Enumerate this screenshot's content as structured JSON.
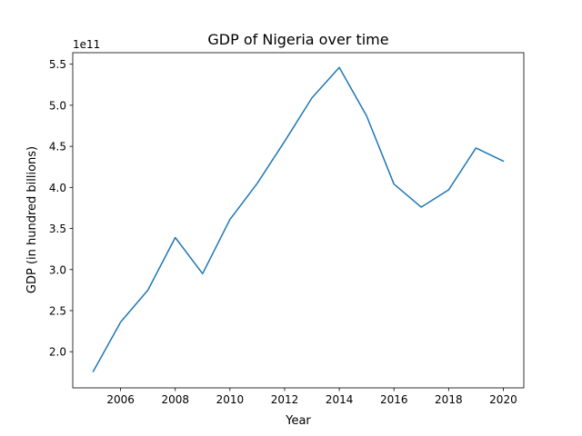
{
  "chart_data": {
    "type": "line",
    "title": "GDP of Nigeria over time",
    "xlabel": "Year",
    "ylabel": "GDP (in hundred billions)",
    "y_offset_text": "1e11",
    "xlim": [
      2004.25,
      2020.75
    ],
    "ylim": [
      1.56,
      5.64
    ],
    "xticks": [
      "2006",
      "2008",
      "2010",
      "2012",
      "2014",
      "2016",
      "2018",
      "2020"
    ],
    "yticks": [
      "2.0",
      "2.5",
      "3.0",
      "3.5",
      "4.0",
      "4.5",
      "5.0",
      "5.5"
    ],
    "grid": false,
    "series": [
      {
        "color": "#1f77b4",
        "x": [
          2005,
          2006,
          2007,
          2008,
          2009,
          2010,
          2011,
          2012,
          2013,
          2014,
          2015,
          2016,
          2017,
          2018,
          2019,
          2020
        ],
        "y": [
          1.76,
          2.36,
          2.75,
          3.39,
          2.95,
          3.61,
          4.05,
          4.56,
          5.09,
          5.46,
          4.87,
          4.04,
          3.76,
          3.97,
          4.48,
          4.32
        ]
      }
    ]
  }
}
